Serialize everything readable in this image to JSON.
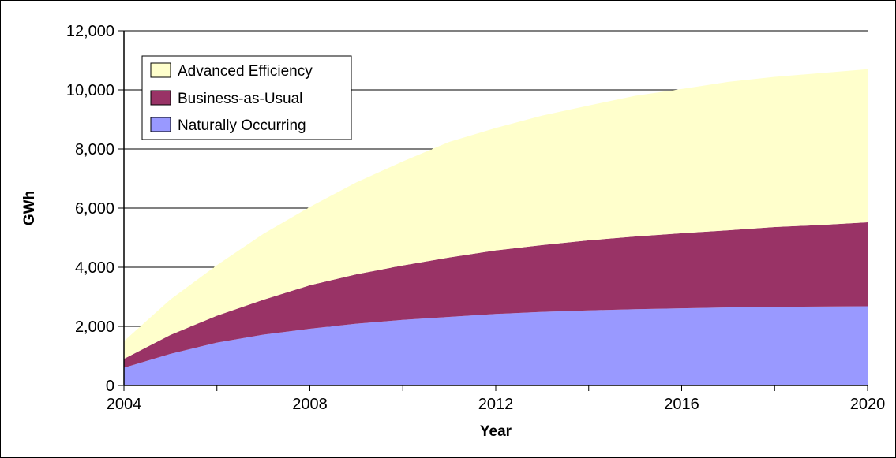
{
  "chart_data": {
    "type": "area",
    "stacked": true,
    "title": "",
    "xlabel": "Year",
    "ylabel": "GWh",
    "xlim": [
      2004,
      2020
    ],
    "ylim": [
      0,
      12000
    ],
    "x_ticks": [
      "2004",
      "2008",
      "2012",
      "2016",
      "2020"
    ],
    "y_ticks": [
      "0",
      "2,000",
      "4,000",
      "6,000",
      "8,000",
      "10,000",
      "12,000"
    ],
    "grid": "horizontal",
    "legend_position": "top-left",
    "x": [
      2004,
      2005,
      2006,
      2007,
      2008,
      2009,
      2010,
      2011,
      2012,
      2013,
      2014,
      2015,
      2016,
      2017,
      2018,
      2019,
      2020
    ],
    "series": [
      {
        "name": "Naturally Occurring",
        "color": "#9999ff",
        "values": [
          600,
          1070,
          1450,
          1720,
          1920,
          2090,
          2220,
          2320,
          2420,
          2490,
          2540,
          2580,
          2610,
          2640,
          2660,
          2670,
          2680
        ]
      },
      {
        "name": "Business-as-Usual",
        "color": "#993366",
        "values": [
          300,
          640,
          910,
          1180,
          1470,
          1670,
          1840,
          2010,
          2150,
          2260,
          2370,
          2460,
          2540,
          2610,
          2700,
          2760,
          2840
        ]
      },
      {
        "name": "Advanced Efficiency",
        "color": "#ffffcc",
        "values": [
          600,
          1200,
          1710,
          2230,
          2650,
          3110,
          3520,
          3910,
          4140,
          4380,
          4560,
          4760,
          4880,
          5020,
          5080,
          5140,
          5180
        ]
      }
    ],
    "legend": [
      "Advanced Efficiency",
      "Business-as-Usual",
      "Naturally Occurring"
    ]
  }
}
